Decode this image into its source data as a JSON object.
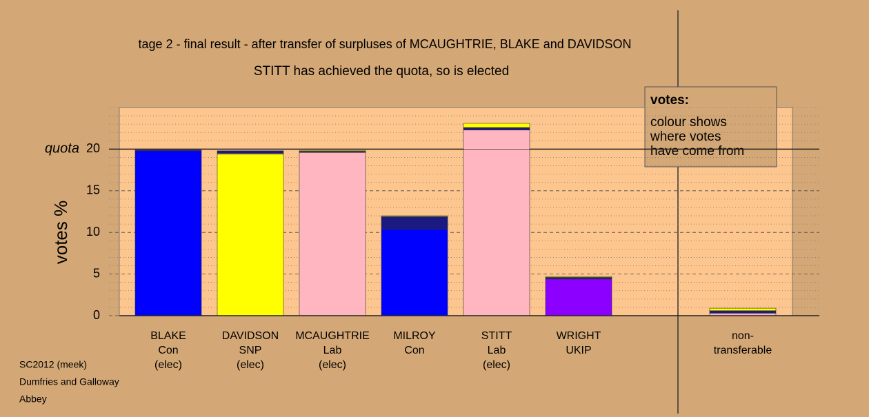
{
  "chart_data": {
    "type": "stacked_bar",
    "title": "tage 2 - final result - after transfer of surpluses of MCAUGHTRIE, BLAKE and DAVIDSON",
    "subtitle": "STITT has achieved the quota, so is elected",
    "y_label": "votes %",
    "quota_line": {
      "value": 20,
      "label": "quota"
    },
    "categories": [
      [
        "BLAKE",
        "Con",
        "(elec)"
      ],
      [
        "DAVIDSON",
        "SNP",
        "(elec)"
      ],
      [
        "MCAUGHTRIE",
        "Lab",
        "(elec)"
      ],
      [
        "MILROY",
        "Con"
      ],
      [
        "STITT",
        "Lab",
        "(elec)"
      ],
      [
        "WRIGHT",
        "UKIP"
      ],
      null,
      [
        "non-",
        "transferable"
      ]
    ],
    "series": [
      {
        "colors": [
          "#0000ff",
          "#ffff00",
          "#ffb6c1",
          "#0000ff",
          "#ffb6c1",
          "#8b00ff",
          null,
          "#ffb6c1"
        ],
        "values": [
          19.8,
          19.4,
          19.6,
          10.4,
          20.0,
          4.4,
          null,
          0.3
        ]
      },
      {
        "color": "#ffb6c1",
        "values": [
          0,
          0.1,
          0,
          0,
          2.3,
          0,
          null,
          0
        ]
      },
      {
        "color": "#1a1a80",
        "values": [
          0.1,
          0.3,
          0.15,
          1.5,
          0.3,
          0.2,
          null,
          0.3
        ]
      },
      {
        "color": "#ffff00",
        "values": [
          0,
          0,
          0.1,
          0.1,
          0.5,
          0.1,
          null,
          0.3
        ]
      }
    ],
    "ylim": [
      0,
      25
    ],
    "yticks": [
      0,
      5,
      10,
      15,
      20
    ],
    "minor_yticks": [
      1,
      2,
      3,
      4,
      6,
      7,
      8,
      9,
      11,
      12,
      13,
      14,
      16,
      17,
      18,
      19,
      21,
      22,
      23,
      24,
      25
    ],
    "legend_title": "votes:",
    "legend_text": [
      "colour shows",
      "where votes",
      "have come from"
    ],
    "footer": [
      "SC2012 (meek)",
      "Dumfries and Galloway",
      "Abbey"
    ]
  }
}
